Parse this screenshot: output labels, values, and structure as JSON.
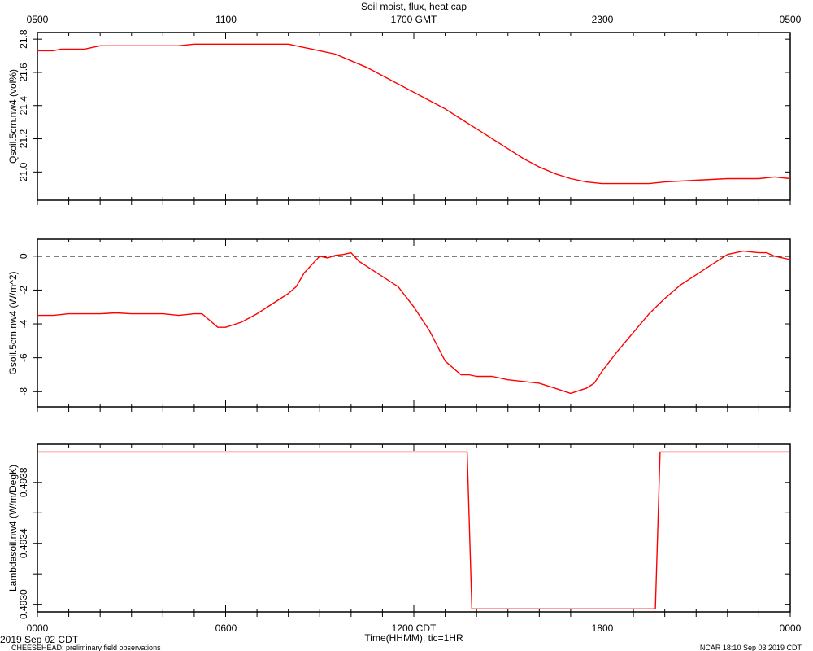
{
  "title": "Soil moist, flux, heat cap",
  "top_axis": {
    "ticks": [
      "0500",
      "1100",
      "1700 GMT",
      "2300",
      "0500"
    ]
  },
  "bottom_axis": {
    "ticks": [
      "0000",
      "0600",
      "1200 CDT",
      "1800",
      "0000"
    ],
    "label": "Time(HHMM), tic=1HR"
  },
  "footer": {
    "date": "2019 Sep 02 CDT",
    "project": "CHEESEHEAD: preliminary field observations",
    "credit": "NCAR 18:10 Sep 03 2019 CDT"
  },
  "colors": {
    "series": "#ff0000",
    "axis": "#000000",
    "zero_line": "#000000"
  },
  "chart_data": [
    {
      "type": "line",
      "ylabel": "Qsoil.5cm.nw4 (vol%)",
      "xlim": [
        0,
        24
      ],
      "ylim": [
        20.83,
        21.84
      ],
      "yticks": [
        21.0,
        21.2,
        21.4,
        21.6,
        21.8
      ],
      "yticklabels": [
        "21.0",
        "21.2",
        "21.4",
        "21.6",
        "21.8"
      ],
      "zero_line": false,
      "series": [
        {
          "x": [
            0,
            0.5,
            0.75,
            1.5,
            2,
            3,
            4,
            4.5,
            5,
            5.5,
            6,
            6.5,
            7,
            7.5,
            8,
            8.5,
            9,
            9.5,
            10,
            10.5,
            11,
            11.5,
            12,
            12.5,
            13,
            13.5,
            14,
            14.5,
            15,
            15.5,
            16,
            16.5,
            17,
            17.5,
            18,
            18.5,
            19,
            19.5,
            20,
            21,
            22,
            23,
            23.5,
            24
          ],
          "y": [
            21.73,
            21.73,
            21.74,
            21.74,
            21.76,
            21.76,
            21.76,
            21.76,
            21.77,
            21.77,
            21.77,
            21.77,
            21.77,
            21.77,
            21.77,
            21.75,
            21.73,
            21.71,
            21.67,
            21.63,
            21.58,
            21.53,
            21.48,
            21.43,
            21.38,
            21.32,
            21.26,
            21.2,
            21.14,
            21.08,
            21.03,
            20.99,
            20.96,
            20.94,
            20.93,
            20.93,
            20.93,
            20.93,
            20.94,
            20.95,
            20.96,
            20.96,
            20.97,
            20.96
          ]
        }
      ]
    },
    {
      "type": "line",
      "ylabel": "Gsoil.5cm.nw4 (W/m^2)",
      "xlim": [
        0,
        24
      ],
      "ylim": [
        -8.9,
        1.0
      ],
      "yticks": [
        -8,
        -6,
        -4,
        -2,
        0
      ],
      "yticklabels": [
        "-8",
        "-6",
        "-4",
        "-2",
        "0"
      ],
      "zero_line": true,
      "series": [
        {
          "x": [
            0,
            0.5,
            1,
            1.5,
            2,
            2.5,
            3,
            3.5,
            4,
            4.5,
            5,
            5.25,
            5.5,
            5.75,
            6,
            6.5,
            7,
            7.5,
            8,
            8.25,
            8.5,
            8.75,
            9,
            9.25,
            9.5,
            9.75,
            10,
            10.25,
            10.5,
            11,
            11.5,
            12,
            12.5,
            13,
            13.5,
            13.75,
            14,
            14.5,
            15,
            15.5,
            16,
            16.5,
            17,
            17.5,
            17.75,
            18,
            18.5,
            19,
            19.5,
            20,
            20.5,
            21,
            21.5,
            22,
            22.5,
            23,
            23.25,
            23.5,
            24
          ],
          "y": [
            -3.5,
            -3.5,
            -3.4,
            -3.4,
            -3.4,
            -3.35,
            -3.4,
            -3.4,
            -3.4,
            -3.5,
            -3.4,
            -3.4,
            -3.8,
            -4.2,
            -4.2,
            -3.9,
            -3.4,
            -2.8,
            -2.2,
            -1.8,
            -1.0,
            -0.5,
            0,
            -0.1,
            0.05,
            0.1,
            0.2,
            -0.3,
            -0.6,
            -1.2,
            -1.8,
            -3.0,
            -4.4,
            -6.2,
            -7.0,
            -7.0,
            -7.1,
            -7.1,
            -7.3,
            -7.4,
            -7.5,
            -7.8,
            -8.1,
            -7.8,
            -7.5,
            -6.8,
            -5.6,
            -4.5,
            -3.4,
            -2.5,
            -1.7,
            -1.1,
            -0.5,
            0.1,
            0.3,
            0.2,
            0.2,
            0.0,
            -0.2
          ]
        }
      ]
    },
    {
      "type": "line",
      "ylabel": "Lambdasoil.nw4 (W/m/DegK)",
      "xlim": [
        0,
        24
      ],
      "ylim": [
        0.49295,
        0.49405
      ],
      "yticks": [
        0.493,
        0.4932,
        0.4934,
        0.4936,
        0.4938
      ],
      "yticklabels": [
        "0.4930",
        "",
        "0.4934",
        "",
        "0.4938"
      ],
      "zero_line": false,
      "series": [
        {
          "x": [
            0,
            13.7,
            13.85,
            14.5,
            19.7,
            19.85,
            24
          ],
          "y": [
            0.494,
            0.494,
            0.49297,
            0.49297,
            0.49297,
            0.494,
            0.494
          ]
        }
      ]
    }
  ]
}
